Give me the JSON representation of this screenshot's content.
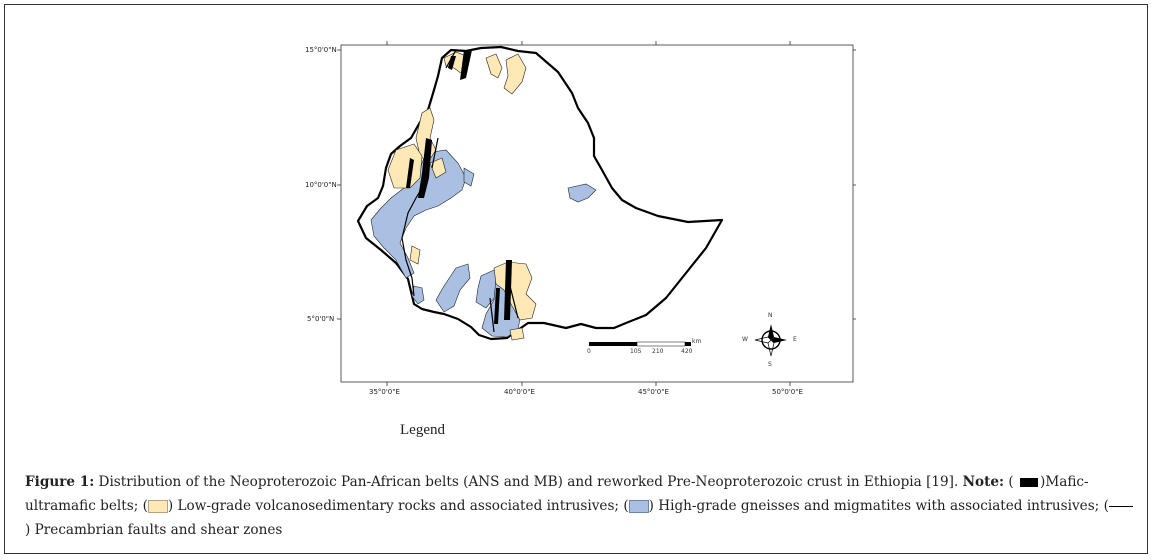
{
  "map": {
    "lat_labels": [
      "15°0'0\"N",
      "10°0'0\"N",
      "5°0'0\"N"
    ],
    "lon_labels": [
      "35°0'0\"E",
      "40°0'0\"E",
      "45°0'0\"E",
      "50°0'0\"E"
    ],
    "scale_bar": {
      "ticks": [
        "0",
        "105",
        "210",
        "420"
      ],
      "unit": "km"
    },
    "compass": {
      "n": "N",
      "s": "S",
      "e": "E",
      "w": "W"
    },
    "colors": {
      "mafic": "#000000",
      "low_grade": "#fde8b6",
      "high_grade": "#a9c0e3",
      "fault": "#000000"
    }
  },
  "legend": {
    "title": "Legend"
  },
  "caption": {
    "label": "Figure 1:",
    "text": " Distribution of the Neoproterozoic Pan-African belts (ANS and MB) and reworked Pre-Neoproterozoic crust in Ethiopia [19]. ",
    "note_label": "Note:",
    "paren_open": " ( ",
    "item1": ")Mafic-ultramafic belts; (",
    "item2": ") Low-grade volcanosedimentary rocks and associated intrusives; (",
    "item3": ") High-grade gneisses and migmatites with associated intrusives; (",
    "item4": ") Precambrian faults and shear zones"
  }
}
